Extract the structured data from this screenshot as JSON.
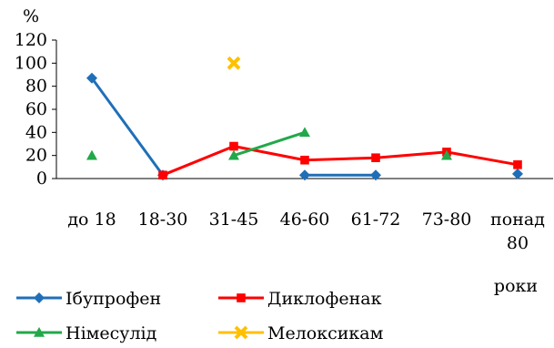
{
  "chart_data": {
    "type": "line",
    "title": "",
    "ylabel": "%",
    "xlabel": "роки",
    "ylim": [
      0,
      120
    ],
    "yticks": [
      0,
      20,
      40,
      60,
      80,
      100,
      120
    ],
    "grid": false,
    "legend_position": "bottom",
    "categories": [
      "до 18",
      "18-30",
      "31-45",
      "46-60",
      "61-72",
      "73-80",
      "понад 80"
    ],
    "category_lines": [
      [
        "до 18"
      ],
      [
        "18-30"
      ],
      [
        "31-45"
      ],
      [
        "46-60"
      ],
      [
        "61-72"
      ],
      [
        "73-80"
      ],
      [
        "понад",
        "80"
      ]
    ],
    "series": [
      {
        "name": "Ібупрофен",
        "color": "#1f6fb8",
        "marker": "diamond",
        "values": [
          87,
          3,
          null,
          3,
          3,
          null,
          4
        ],
        "segments": [
          [
            0,
            1
          ],
          [
            3,
            4
          ]
        ]
      },
      {
        "name": "Диклофенак",
        "color": "#ff0000",
        "marker": "square",
        "values": [
          null,
          3,
          28,
          16,
          18,
          23,
          12
        ],
        "segments": [
          [
            1,
            6
          ]
        ]
      },
      {
        "name": "Німесулід",
        "color": "#22a84a",
        "marker": "triangle",
        "values": [
          20,
          null,
          20,
          40,
          null,
          20,
          null
        ],
        "segments": [
          [
            2,
            3
          ]
        ]
      },
      {
        "name": "Мелоксикам",
        "color": "#ffc000",
        "marker": "x",
        "values": [
          null,
          null,
          100,
          null,
          null,
          null,
          null
        ],
        "segments": []
      }
    ]
  }
}
